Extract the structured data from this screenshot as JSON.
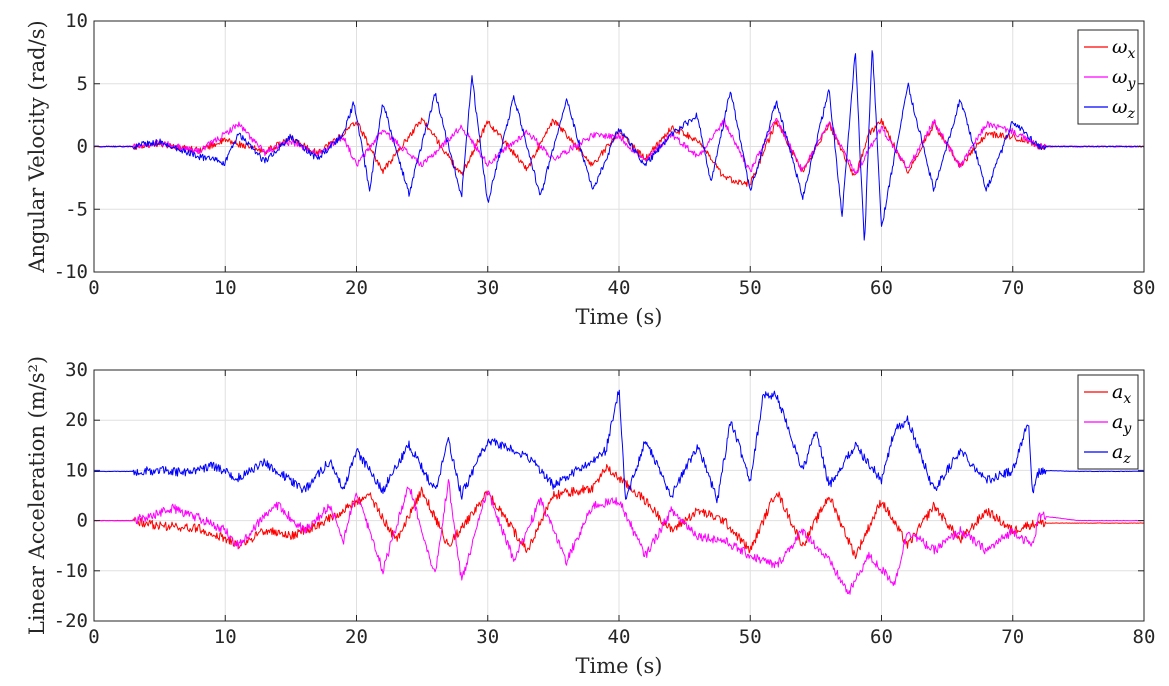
{
  "chart_data": [
    {
      "type": "line",
      "xlabel": "Time (s)",
      "ylabel": "Angular Velocity (rad/s)",
      "xlim": [
        0,
        80
      ],
      "ylim": [
        -10,
        10
      ],
      "xticks": [
        0,
        10,
        20,
        30,
        40,
        50,
        60,
        70,
        80
      ],
      "yticks": [
        -10,
        -5,
        0,
        5,
        10
      ],
      "grid": true,
      "legend_position": "top-right",
      "series": [
        {
          "name": "ω_x",
          "color": "#ff0000",
          "x": [
            0,
            3,
            5,
            8,
            10,
            13,
            15,
            17,
            19,
            20,
            22,
            25,
            28,
            30,
            33,
            35,
            38,
            40,
            42,
            44,
            46,
            48,
            50,
            52,
            54,
            56,
            58,
            59,
            60,
            62,
            64,
            66,
            68,
            70,
            72,
            75,
            80
          ],
          "y": [
            0,
            0,
            0.2,
            -0.3,
            0.5,
            -0.4,
            0.6,
            -0.5,
            1.0,
            2.0,
            -2.0,
            2.2,
            -2.3,
            2.0,
            -1.8,
            2.1,
            -1.5,
            1.2,
            -1.0,
            1.5,
            0.5,
            -2.5,
            -3.0,
            2.0,
            -2.0,
            1.8,
            -2.5,
            1.0,
            2.0,
            -2.0,
            1.8,
            -1.6,
            1.0,
            0.8,
            0,
            0,
            0
          ]
        },
        {
          "name": "ω_y",
          "color": "#ff00ff",
          "x": [
            0,
            3,
            5,
            8,
            10,
            11,
            13,
            15,
            17,
            19,
            20,
            22,
            25,
            28,
            30,
            33,
            35,
            38,
            40,
            42,
            44,
            46,
            48,
            50,
            52,
            54,
            56,
            58,
            60,
            62,
            64,
            66,
            68,
            70,
            72,
            75,
            80
          ],
          "y": [
            0,
            0,
            0.3,
            -0.4,
            1.0,
            1.8,
            -0.5,
            0.4,
            -0.6,
            0.8,
            -1.5,
            1.3,
            -1.5,
            1.6,
            -1.4,
            1.2,
            -1.0,
            0.9,
            0.8,
            -1.2,
            1.0,
            -0.8,
            2.0,
            -2.0,
            2.2,
            -2.0,
            2.0,
            -2.2,
            1.5,
            -1.8,
            2.0,
            -1.6,
            1.8,
            1.2,
            0,
            0,
            0
          ]
        },
        {
          "name": "ω_z",
          "color": "#0000ff",
          "x": [
            0,
            3,
            5,
            8,
            10,
            11,
            13,
            15,
            17,
            19,
            19.8,
            21,
            22,
            24,
            26,
            28,
            28.8,
            30,
            32,
            34,
            36,
            38,
            40,
            42,
            44,
            46,
            47,
            48.5,
            50,
            52,
            54,
            56,
            57,
            58,
            58.7,
            59.3,
            60,
            62,
            64,
            66,
            68,
            70,
            72,
            75,
            80
          ],
          "y": [
            0,
            0,
            0.4,
            -0.8,
            -1.3,
            1.0,
            -1.2,
            0.8,
            -1.0,
            1.0,
            3.5,
            -3.5,
            3.5,
            -3.8,
            4.2,
            -4.0,
            5.5,
            -4.5,
            4.0,
            -4.0,
            3.8,
            -3.5,
            1.5,
            -1.5,
            1.0,
            2.5,
            -3.0,
            4.5,
            -3.6,
            3.6,
            -4.0,
            4.5,
            -5.5,
            7.7,
            -8.0,
            8.2,
            -6.5,
            5.0,
            -3.5,
            3.8,
            -3.5,
            2.0,
            0,
            0,
            0
          ]
        }
      ]
    },
    {
      "type": "line",
      "xlabel": "Time (s)",
      "ylabel": "Linear Acceleration (m/s²)",
      "xlim": [
        0,
        80
      ],
      "ylim": [
        -20,
        30
      ],
      "xticks": [
        0,
        10,
        20,
        30,
        40,
        50,
        60,
        70,
        80
      ],
      "yticks": [
        -20,
        -10,
        0,
        10,
        20,
        30
      ],
      "grid": true,
      "legend_position": "top-right",
      "series": [
        {
          "name": "a_x",
          "color": "#ff0000",
          "x": [
            0,
            3,
            5,
            8,
            10,
            11,
            13,
            15,
            17,
            19,
            21,
            23,
            25,
            27,
            30,
            33,
            35,
            38,
            39,
            40,
            42,
            44,
            46,
            48,
            50,
            52,
            54,
            56,
            58,
            60,
            62,
            64,
            66,
            68,
            70,
            71,
            72,
            75,
            80
          ],
          "y": [
            0,
            0,
            -1.0,
            -1.5,
            -3.5,
            -5.0,
            -2.0,
            -3.0,
            -1.0,
            2.0,
            5.0,
            -4.0,
            6.0,
            -5.0,
            5.5,
            -6.0,
            5.0,
            6.5,
            10.5,
            8.5,
            4.0,
            -2.0,
            2.0,
            0.0,
            -6.0,
            6.0,
            -5.0,
            5.0,
            -7.0,
            4.0,
            -5.0,
            3.0,
            -4.0,
            2.0,
            -2.0,
            -1.0,
            -0.5,
            -0.5,
            -0.5
          ]
        },
        {
          "name": "a_y",
          "color": "#ff00ff",
          "x": [
            0,
            3,
            5,
            6,
            8,
            10,
            11,
            13,
            14,
            16,
            18,
            19,
            20,
            22,
            24,
            26,
            27,
            28,
            30,
            32,
            34,
            36,
            38,
            40,
            42,
            44,
            46,
            48,
            50,
            52,
            54,
            56,
            57.5,
            59,
            61,
            62,
            64,
            66,
            68,
            70,
            71.5,
            72,
            75,
            80
          ],
          "y": [
            0,
            0,
            1.5,
            2.5,
            0.5,
            -2.0,
            -5.0,
            1.0,
            3.0,
            -2.0,
            3.0,
            -4.0,
            6.0,
            -10.0,
            7.0,
            -11.0,
            8.0,
            -12.0,
            6.0,
            -8.0,
            4.0,
            -8.0,
            3.0,
            4.0,
            -7.0,
            2.0,
            -3.0,
            -4.0,
            -7.0,
            -9.0,
            -2.0,
            -8.0,
            -14.5,
            -7.0,
            -12.5,
            -2.0,
            -6.0,
            -2.0,
            -6.0,
            -2.0,
            -5.0,
            1.0,
            0,
            0
          ]
        },
        {
          "name": "a_z",
          "color": "#0000ff",
          "x": [
            0,
            3,
            5,
            7,
            9,
            11,
            13,
            15,
            16,
            18,
            19,
            20,
            22,
            24,
            26,
            27,
            28,
            30,
            33,
            35,
            38,
            39,
            40,
            40.5,
            42,
            44,
            46,
            47.5,
            48.5,
            50,
            51,
            52,
            54,
            55,
            56,
            58,
            60,
            61,
            62,
            64,
            66,
            68,
            70,
            71.2,
            71.5,
            72,
            75,
            80
          ],
          "y": [
            9.8,
            9.8,
            10,
            9.5,
            11,
            8.5,
            11.5,
            8,
            6,
            12,
            6,
            14,
            6,
            15,
            6,
            16,
            5,
            16,
            13,
            7,
            12,
            14,
            26,
            4,
            16,
            5,
            15,
            4,
            20,
            8,
            25,
            25,
            10,
            18,
            7,
            15,
            8,
            18,
            20,
            6,
            14,
            8,
            10,
            20,
            5,
            10,
            9.8,
            9.8
          ]
        }
      ]
    }
  ]
}
